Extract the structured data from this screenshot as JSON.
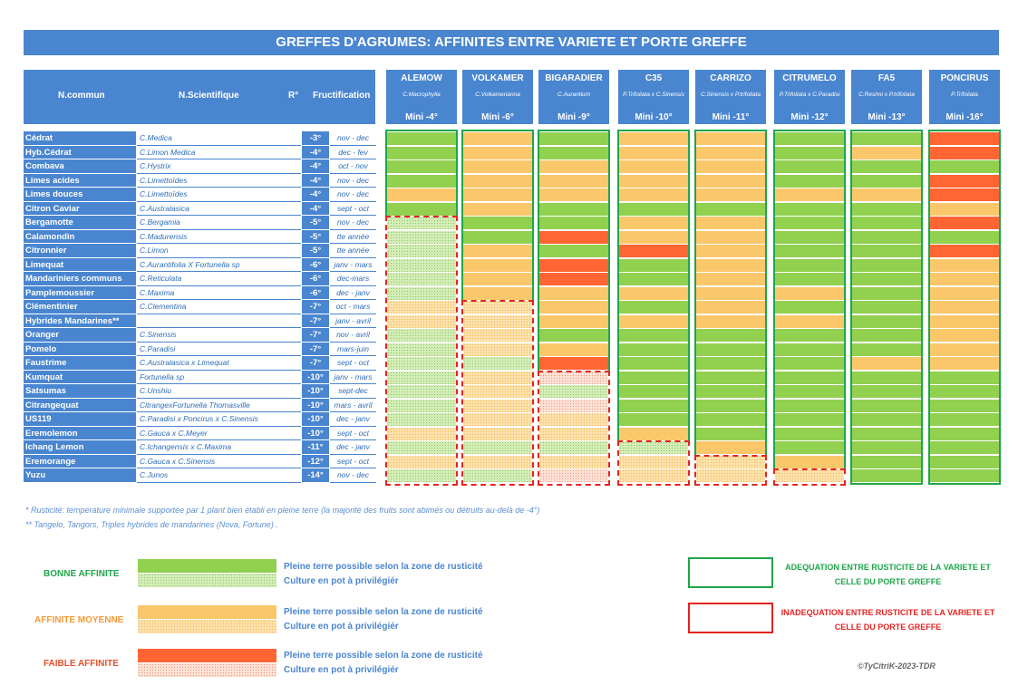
{
  "title": "GREFFES D'AGRUMES: AFFINITES ENTRE VARIETE ET PORTE GREFFE",
  "headers": {
    "name": "N.commun",
    "sci": "N.Scientifique",
    "r": "R°",
    "fruct": "Fructification"
  },
  "rootstocks": [
    {
      "name": "ALEMOW",
      "sci": "C.Macrophylla",
      "mini": "Mini -4°"
    },
    {
      "name": "VOLKAMER",
      "sci": "C.Volkamerianna",
      "mini": "Mini -6°"
    },
    {
      "name": "BIGARADIER",
      "sci": "C.Aurantium",
      "mini": "Mini -9°"
    },
    {
      "name": "C35",
      "sci": "P.Trifoliata x C.Sinensis",
      "mini": "Mini -10°"
    },
    {
      "name": "CARRIZO",
      "sci": "C.Sinensis x P.trifoliata",
      "mini": "Mini -11°"
    },
    {
      "name": "CITRUMELO",
      "sci": "P.Trifoliata x C.Paradisi",
      "mini": "Mini -12°"
    },
    {
      "name": "FA5",
      "sci": "C.Reshni x P.trifoliata",
      "mini": "Mini -13°"
    },
    {
      "name": "PONCIRUS",
      "sci": "P.Trifoliata",
      "mini": "Mini -16°"
    }
  ],
  "varieties": [
    {
      "name": "Cédrat",
      "sci": "C.Medica",
      "r": "-3°",
      "fruct": "nov - dec",
      "cells": [
        "g",
        "y",
        "g",
        "y",
        "y",
        "g",
        "g",
        "o"
      ]
    },
    {
      "name": "Hyb.Cédrat",
      "sci": "C.Limon Medica",
      "r": "-4°",
      "fruct": "dec - fev",
      "cells": [
        "g",
        "y",
        "g",
        "y",
        "y",
        "g",
        "y",
        "o"
      ]
    },
    {
      "name": "Combava",
      "sci": "C.Hystrix",
      "r": "-4°",
      "fruct": "oct - nov",
      "cells": [
        "g",
        "y",
        "y",
        "y",
        "y",
        "g",
        "g",
        "g"
      ]
    },
    {
      "name": "Limes acides",
      "sci": "C.Limettoïdes",
      "r": "-4°",
      "fruct": "nov - dec",
      "cells": [
        "g",
        "y",
        "y",
        "y",
        "y",
        "g",
        "g",
        "o"
      ]
    },
    {
      "name": "Limes douces",
      "sci": "C.Limettoïdes",
      "r": "-4°",
      "fruct": "nov - dec",
      "cells": [
        "y",
        "y",
        "y",
        "y",
        "y",
        "y",
        "y",
        "o"
      ]
    },
    {
      "name": "Citron Caviar",
      "sci": "C.Australasica",
      "r": "-4°",
      "fruct": "sept - oct",
      "cells": [
        "g",
        "y",
        "g",
        "g",
        "g",
        "g",
        "g",
        "y"
      ]
    },
    {
      "name": "Bergamotte",
      "sci": "C.Bergamia",
      "r": "-5°",
      "fruct": "nov - dec",
      "cells": [
        "gp",
        "g",
        "g",
        "y",
        "y",
        "g",
        "g",
        "o"
      ]
    },
    {
      "name": "Calamondin",
      "sci": "C.Madurensis",
      "r": "-5°",
      "fruct": "tte année",
      "cells": [
        "gp",
        "g",
        "o",
        "y",
        "y",
        "g",
        "g",
        "g"
      ]
    },
    {
      "name": "Citronnier",
      "sci": "C.Limon",
      "r": "-5°",
      "fruct": "tte année",
      "cells": [
        "gp",
        "y",
        "g",
        "o",
        "y",
        "g",
        "g",
        "o"
      ]
    },
    {
      "name": "Limequat",
      "sci": "C.Aurantifolia X Fortunella sp",
      "r": "-6°",
      "fruct": "janv - mars",
      "cells": [
        "gp",
        "y",
        "o",
        "g",
        "y",
        "g",
        "g",
        "y"
      ]
    },
    {
      "name": "Mandariniers communs",
      "sci": "C.Reticulata",
      "r": "-6°",
      "fruct": "dec-mars",
      "cells": [
        "gp",
        "y",
        "o",
        "g",
        "y",
        "g",
        "g",
        "y"
      ]
    },
    {
      "name": "Pamplemoussier",
      "sci": "C.Maxima",
      "r": "-6°",
      "fruct": "dec - janv",
      "cells": [
        "gp",
        "y",
        "y",
        "y",
        "y",
        "y",
        "g",
        "y"
      ]
    },
    {
      "name": "Clémentinier",
      "sci": "C.Clementina",
      "r": "-7°",
      "fruct": "oct - mars",
      "cells": [
        "yp",
        "yp",
        "y",
        "g",
        "y",
        "g",
        "g",
        "y"
      ]
    },
    {
      "name": "Hybrides Mandarines**",
      "sci": "",
      "r": "-7°",
      "fruct": "janv - avril",
      "cells": [
        "yp",
        "yp",
        "y",
        "y",
        "y",
        "y",
        "g",
        "y"
      ]
    },
    {
      "name": "Oranger",
      "sci": "C.Sinensis",
      "r": "-7°",
      "fruct": "nov - avril",
      "cells": [
        "gp",
        "yp",
        "g",
        "g",
        "g",
        "g",
        "g",
        "y"
      ]
    },
    {
      "name": "Pomelo",
      "sci": "C.Paradisi",
      "r": "-7°",
      "fruct": "mars-juin",
      "cells": [
        "gp",
        "yp",
        "y",
        "g",
        "g",
        "g",
        "g",
        "y"
      ]
    },
    {
      "name": "Faustrime",
      "sci": "C.Australasica x Limequat",
      "r": "-7°",
      "fruct": "sept - oct",
      "cells": [
        "gp",
        "gp",
        "o",
        "g",
        "g",
        "g",
        "y",
        "y"
      ]
    },
    {
      "name": "Kumquat",
      "sci": "Fortunella sp",
      "r": "-10°",
      "fruct": "janv - mars",
      "cells": [
        "gp",
        "yp",
        "op",
        "g",
        "g",
        "g",
        "g",
        "g"
      ]
    },
    {
      "name": "Satsumas",
      "sci": "C.Unshiu",
      "r": "-10°",
      "fruct": "sept-dec",
      "cells": [
        "gp",
        "yp",
        "gp",
        "g",
        "g",
        "g",
        "g",
        "g"
      ]
    },
    {
      "name": "Citrangequat",
      "sci": "CitrangexFortunella Thomasville",
      "r": "-10°",
      "fruct": "mars - avril",
      "cells": [
        "gp",
        "yp",
        "op",
        "g",
        "g",
        "g",
        "g",
        "g"
      ]
    },
    {
      "name": "US119",
      "sci": "C.Paradisi x Poncirus x C.Sinensis",
      "r": "-10°",
      "fruct": "dec - janv",
      "cells": [
        "gp",
        "yp",
        "yp",
        "g",
        "g",
        "g",
        "g",
        "g"
      ]
    },
    {
      "name": "Eremolemon",
      "sci": "C.Gauca x C.Meyer",
      "r": "-10°",
      "fruct": "sept - oct",
      "cells": [
        "yp",
        "yp",
        "yp",
        "y",
        "g",
        "g",
        "g",
        "g"
      ]
    },
    {
      "name": "Ichang Lemon",
      "sci": "C.Ichangensis x C.Maxima",
      "r": "-11°",
      "fruct": "dec - janv",
      "cells": [
        "gp",
        "gp",
        "gp",
        "gp",
        "y",
        "g",
        "g",
        "g"
      ]
    },
    {
      "name": "Eremorange",
      "sci": "C.Gauca x C.Sinensis",
      "r": "-12°",
      "fruct": "sept - oct",
      "cells": [
        "yp",
        "yp",
        "yp",
        "yp",
        "yp",
        "y",
        "g",
        "g"
      ]
    },
    {
      "name": "Yuzu",
      "sci": "C.Junos",
      "r": "-14°",
      "fruct": "nov - dec",
      "cells": [
        "gp",
        "gp",
        "op",
        "yp",
        "yp",
        "yp",
        "g",
        "g"
      ]
    }
  ],
  "notes": [
    "* Rusticité: temperature minimale supportée par 1 plant bien établi en pleine terre (la majorité des fruits sont abimés ou détruits au-delà de -4°)",
    "** Tangelo, Tangors, Triples hybrides de mandarines (Nova, Fortune) ."
  ],
  "legend": [
    {
      "label": "BONNE AFFINITE",
      "color": "#1fa64a",
      "solid": "Pleine terre possible selon la zone de rusticité",
      "pot": "Culture en pot à privilégiér"
    },
    {
      "label": "AFFINITE MOYENNE",
      "color": "#f59a3a",
      "solid": "Pleine terre possible selon la zone de rusticité",
      "pot": "Culture en pot à privilégiér"
    },
    {
      "label": "FAIBLE AFFINITE",
      "color": "#e8502a",
      "solid": "Pleine terre possible selon la zone de rusticité",
      "pot": "Culture en pot à privilégiér"
    }
  ],
  "adequation": {
    "good": "ADEQUATION ENTRE RUSTICITE DE LA VARIETE ET CELLE DU PORTE GREFFE",
    "bad": "INADEQUATION ENTRE RUSTICITE DE LA VARIETE ET CELLE DU PORTE GREFFE"
  },
  "copyright": "©TyCitriK-2023-TDR"
}
